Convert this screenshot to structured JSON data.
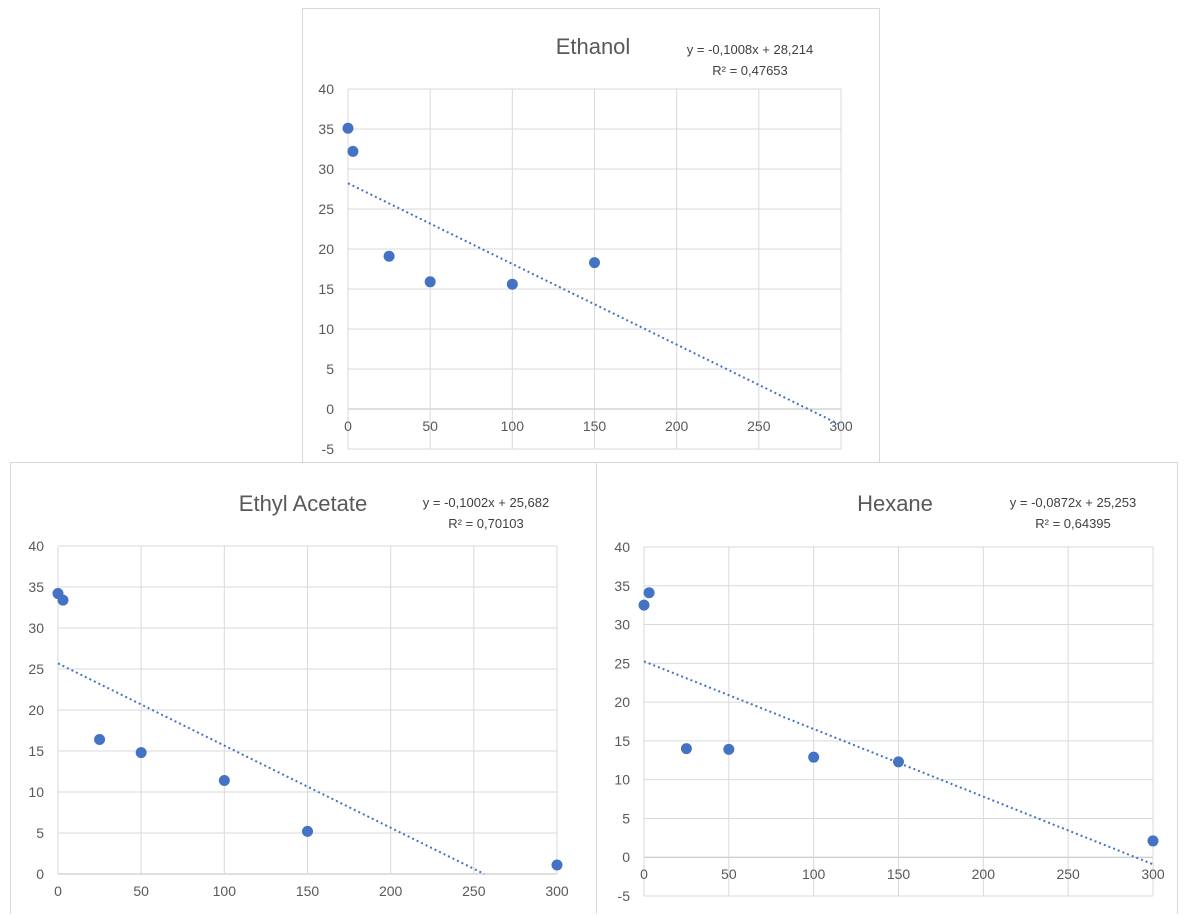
{
  "chart_data": [
    {
      "type": "scatter",
      "title": "Ethanol",
      "xlabel": "",
      "ylabel": "",
      "xlim": [
        0,
        300
      ],
      "ylim": [
        -5,
        40
      ],
      "x_ticks": [
        0,
        50,
        100,
        150,
        200,
        250,
        300
      ],
      "y_ticks": [
        -5,
        0,
        5,
        10,
        15,
        20,
        25,
        30,
        35,
        40
      ],
      "grid": true,
      "legend": "none",
      "points": [
        {
          "x": 0,
          "y": 35.1
        },
        {
          "x": 3,
          "y": 32.2
        },
        {
          "x": 25,
          "y": 19.1
        },
        {
          "x": 50,
          "y": 15.9
        },
        {
          "x": 100,
          "y": 15.6
        },
        {
          "x": 150,
          "y": 18.3
        }
      ],
      "trendline": {
        "type": "linear",
        "slope": -0.1008,
        "intercept": 28.214,
        "equation": "y = -0,1008x + 28,214",
        "r_squared": "R² = 0,47653"
      },
      "color": "#4472c4"
    },
    {
      "type": "scatter",
      "title": "Ethyl Acetate",
      "xlabel": "",
      "ylabel": "",
      "xlim": [
        0,
        300
      ],
      "ylim": [
        0,
        40
      ],
      "x_ticks": [
        0,
        50,
        100,
        150,
        200,
        250,
        300
      ],
      "y_ticks": [
        0,
        5,
        10,
        15,
        20,
        25,
        30,
        35,
        40
      ],
      "grid": true,
      "legend": "none",
      "points": [
        {
          "x": 0,
          "y": 34.2
        },
        {
          "x": 3,
          "y": 33.4
        },
        {
          "x": 25,
          "y": 16.4
        },
        {
          "x": 50,
          "y": 14.8
        },
        {
          "x": 100,
          "y": 11.4
        },
        {
          "x": 150,
          "y": 5.2
        },
        {
          "x": 300,
          "y": 1.1
        }
      ],
      "trendline": {
        "type": "linear",
        "slope": -0.1002,
        "intercept": 25.682,
        "equation": "y = -0,1002x + 25,682",
        "r_squared": "R² = 0,70103"
      },
      "color": "#4472c4"
    },
    {
      "type": "scatter",
      "title": "Hexane",
      "xlabel": "",
      "ylabel": "",
      "xlim": [
        0,
        300
      ],
      "ylim": [
        -5,
        40
      ],
      "x_ticks": [
        0,
        50,
        100,
        150,
        200,
        250,
        300
      ],
      "y_ticks": [
        -5,
        0,
        5,
        10,
        15,
        20,
        25,
        30,
        35,
        40
      ],
      "grid": true,
      "legend": "none",
      "points": [
        {
          "x": 0,
          "y": 32.5
        },
        {
          "x": 3,
          "y": 34.1
        },
        {
          "x": 25,
          "y": 14.0
        },
        {
          "x": 50,
          "y": 13.9
        },
        {
          "x": 100,
          "y": 12.9
        },
        {
          "x": 150,
          "y": 12.3
        },
        {
          "x": 300,
          "y": 2.1
        }
      ],
      "trendline": {
        "type": "linear",
        "slope": -0.0872,
        "intercept": 25.253,
        "equation": "y = -0,0872x + 25,253",
        "r_squared": "R² = 0,64395"
      },
      "color": "#4472c4"
    }
  ]
}
